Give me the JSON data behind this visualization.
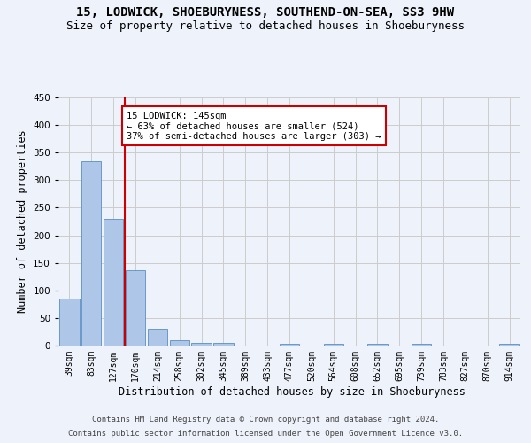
{
  "title": "15, LODWICK, SHOEBURYNESS, SOUTHEND-ON-SEA, SS3 9HW",
  "subtitle": "Size of property relative to detached houses in Shoeburyness",
  "xlabel": "Distribution of detached houses by size in Shoeburyness",
  "ylabel": "Number of detached properties",
  "footer_line1": "Contains HM Land Registry data © Crown copyright and database right 2024.",
  "footer_line2": "Contains public sector information licensed under the Open Government Licence v3.0.",
  "bar_values": [
    85,
    335,
    230,
    136,
    30,
    10,
    5,
    5,
    0,
    0,
    4,
    0,
    4,
    0,
    4,
    0,
    4,
    0,
    0,
    0,
    4
  ],
  "x_labels": [
    "39sqm",
    "83sqm",
    "127sqm",
    "170sqm",
    "214sqm",
    "258sqm",
    "302sqm",
    "345sqm",
    "389sqm",
    "433sqm",
    "477sqm",
    "520sqm",
    "564sqm",
    "608sqm",
    "652sqm",
    "695sqm",
    "739sqm",
    "783sqm",
    "827sqm",
    "870sqm",
    "914sqm"
  ],
  "bar_color": "#aec6e8",
  "bar_edge_color": "#5a8fc2",
  "ylim": [
    0,
    450
  ],
  "yticks": [
    0,
    50,
    100,
    150,
    200,
    250,
    300,
    350,
    400,
    450
  ],
  "vline_x": 2.5,
  "vline_color": "#cc0000",
  "annotation_text": "15 LODWICK: 145sqm\n← 63% of detached houses are smaller (524)\n37% of semi-detached houses are larger (303) →",
  "annotation_box_color": "#cc0000",
  "background_color": "#eef2fb",
  "grid_color": "#cccccc",
  "title_fontsize": 10,
  "subtitle_fontsize": 9,
  "axis_label_fontsize": 8.5,
  "tick_fontsize": 7,
  "footer_fontsize": 6.5,
  "annot_fontsize": 7.5
}
